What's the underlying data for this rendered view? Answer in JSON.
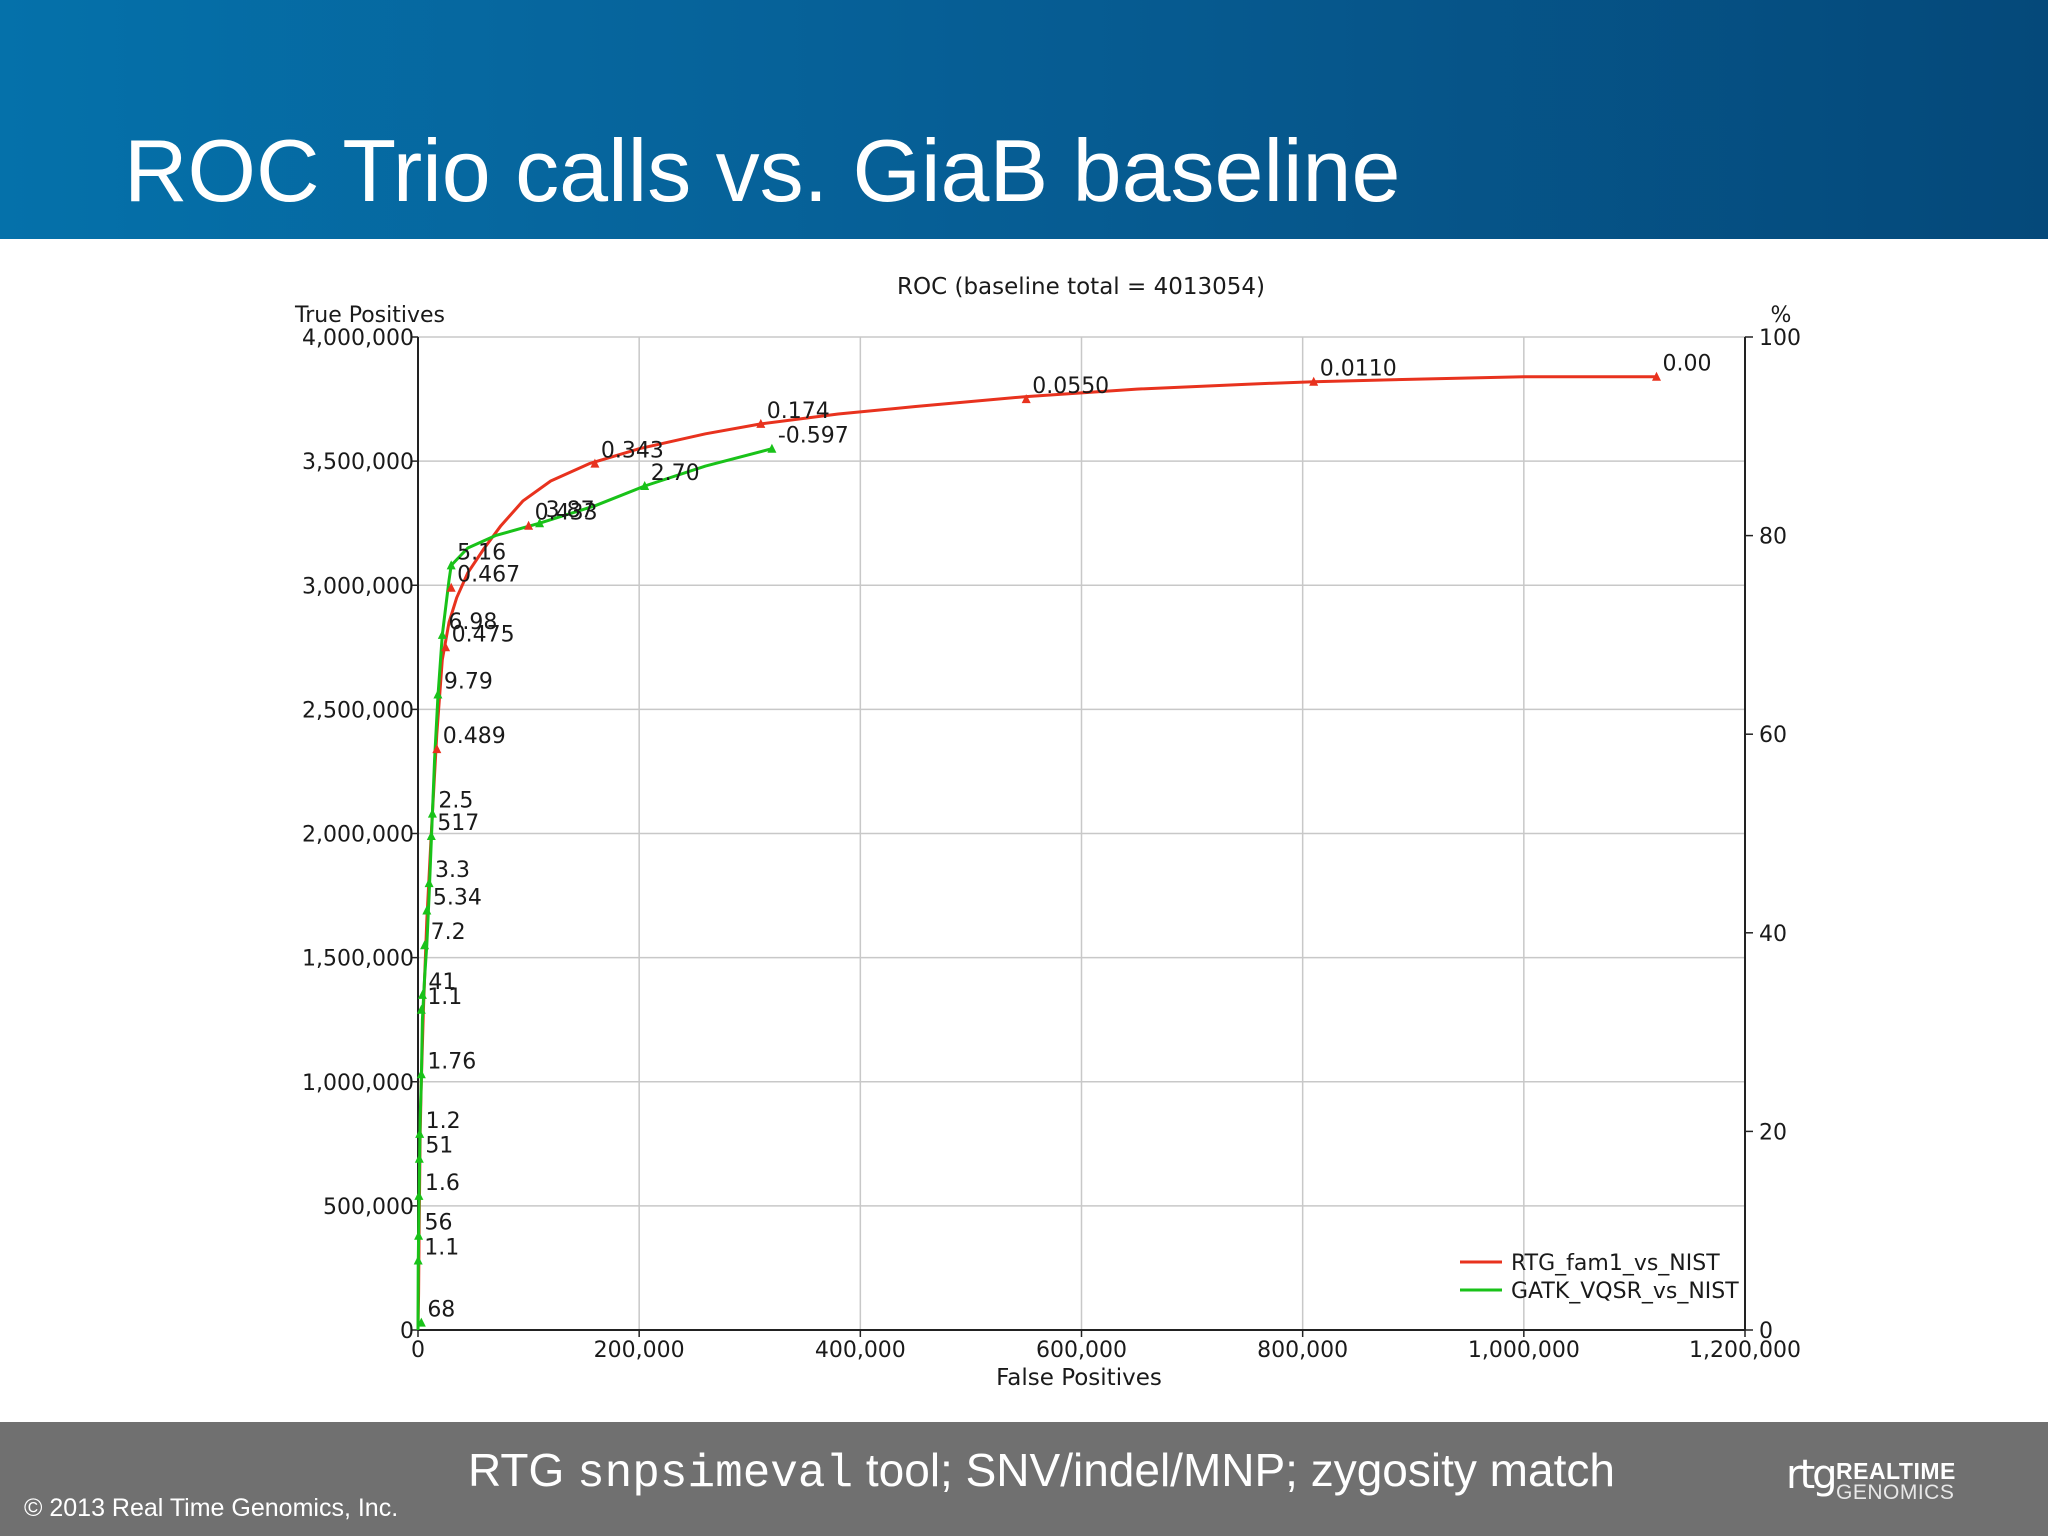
{
  "slide": {
    "title": "ROC Trio calls vs. GiaB baseline",
    "footer_caption_pre": "RTG ",
    "footer_caption_code": "snpsimeval",
    "footer_caption_post": " tool; SNV/indel/MNP; zygosity match",
    "copyright": "© 2013 Real Time Genomics, Inc.",
    "logo_mark": "rtg",
    "logo_line1": "REALTIME",
    "logo_line2": "GENOMICS"
  },
  "colors": {
    "header_start": "#0571aa",
    "header_end": "#05497a",
    "footer": "#707070",
    "rtg_series": "#e8321e",
    "gatk_series": "#19c219",
    "grid": "#c8c8c8"
  },
  "chart_data": {
    "type": "line",
    "title": "ROC (baseline total = 4013054)",
    "xlabel": "False Positives",
    "ylabel": "True Positives",
    "y2label": "%",
    "xlim": [
      0,
      1200000
    ],
    "ylim": [
      0,
      4000000
    ],
    "y2lim": [
      0,
      100
    ],
    "xticks": [
      0,
      200000,
      400000,
      600000,
      800000,
      1000000,
      1200000
    ],
    "xtick_labels": [
      "0",
      "200,000",
      "400,000",
      "600,000",
      "800,000",
      "1,000,000",
      "1,200,000"
    ],
    "yticks": [
      0,
      500000,
      1000000,
      1500000,
      2000000,
      2500000,
      3000000,
      3500000,
      4000000
    ],
    "ytick_labels": [
      "0",
      "500,000",
      "1,000,000",
      "1,500,000",
      "2,000,000",
      "2,500,000",
      "3,000,000",
      "3,500,000",
      "4,000,000"
    ],
    "y2ticks": [
      0,
      20,
      40,
      60,
      80,
      100
    ],
    "y2tick_labels": [
      "0",
      "20",
      "40",
      "60",
      "80",
      "100"
    ],
    "grid": true,
    "legend_position": "bottom-right",
    "series": [
      {
        "name": "RTG_fam1_vs_NIST",
        "color": "#e8321e",
        "points": [
          [
            0,
            0
          ],
          [
            500,
            150000
          ],
          [
            1000,
            400000
          ],
          [
            2000,
            800000
          ],
          [
            3000,
            1000000
          ],
          [
            5000,
            1300000
          ],
          [
            8000,
            1650000
          ],
          [
            12000,
            2000000
          ],
          [
            17000,
            2400000
          ],
          [
            22000,
            2700000
          ],
          [
            28000,
            2850000
          ],
          [
            35000,
            2950000
          ],
          [
            45000,
            3050000
          ],
          [
            60000,
            3150000
          ],
          [
            75000,
            3240000
          ],
          [
            95000,
            3340000
          ],
          [
            120000,
            3420000
          ],
          [
            155000,
            3490000
          ],
          [
            200000,
            3550000
          ],
          [
            260000,
            3610000
          ],
          [
            310000,
            3650000
          ],
          [
            380000,
            3690000
          ],
          [
            450000,
            3720000
          ],
          [
            550000,
            3760000
          ],
          [
            650000,
            3790000
          ],
          [
            750000,
            3810000
          ],
          [
            810000,
            3820000
          ],
          [
            900000,
            3830000
          ],
          [
            1000000,
            3840000
          ],
          [
            1120000,
            3840000
          ]
        ],
        "markers": [
          {
            "x": 100000,
            "y": 3240000,
            "label": "0.433"
          },
          {
            "x": 160000,
            "y": 3490000,
            "label": "0.343"
          },
          {
            "x": 310000,
            "y": 3650000,
            "label": "0.174"
          },
          {
            "x": 550000,
            "y": 3750000,
            "label": "0.0550"
          },
          {
            "x": 810000,
            "y": 3820000,
            "label": "0.0110"
          },
          {
            "x": 1120000,
            "y": 3840000,
            "label": "0.00"
          },
          {
            "x": 30000,
            "y": 2990000,
            "label": "0.467"
          },
          {
            "x": 25000,
            "y": 2750000,
            "label": "0.475"
          },
          {
            "x": 17000,
            "y": 2340000,
            "label": "0.489"
          }
        ]
      },
      {
        "name": "GATK_VQSR_vs_NIST",
        "color": "#19c219",
        "points": [
          [
            0,
            0
          ],
          [
            200,
            250000
          ],
          [
            500,
            380000
          ],
          [
            1000,
            540000
          ],
          [
            1500,
            720000
          ],
          [
            2000,
            860000
          ],
          [
            3000,
            1000000
          ],
          [
            4000,
            1250000
          ],
          [
            6000,
            1420000
          ],
          [
            8000,
            1550000
          ],
          [
            10000,
            1750000
          ],
          [
            13000,
            2080000
          ],
          [
            15000,
            2300000
          ],
          [
            18000,
            2550000
          ],
          [
            22000,
            2800000
          ],
          [
            28000,
            3020000
          ],
          [
            30000,
            3080000
          ],
          [
            45000,
            3150000
          ],
          [
            70000,
            3200000
          ],
          [
            110000,
            3250000
          ],
          [
            160000,
            3320000
          ],
          [
            205000,
            3400000
          ],
          [
            260000,
            3480000
          ],
          [
            320000,
            3550000
          ]
        ],
        "markers": [
          {
            "x": 320000,
            "y": 3550000,
            "label": "-0.597"
          },
          {
            "x": 205000,
            "y": 3400000,
            "label": "2.70"
          },
          {
            "x": 110000,
            "y": 3250000,
            "label": "3.87"
          },
          {
            "x": 30000,
            "y": 3080000,
            "label": "5.16"
          },
          {
            "x": 22000,
            "y": 2800000,
            "label": "6.98"
          },
          {
            "x": 18000,
            "y": 2560000,
            "label": "9.79"
          },
          {
            "x": 13000,
            "y": 2080000,
            "label": "2.5"
          },
          {
            "x": 12000,
            "y": 1990000,
            "label": "517"
          },
          {
            "x": 10000,
            "y": 1800000,
            "label": "3.3"
          },
          {
            "x": 8000,
            "y": 1690000,
            "label": "5.34"
          },
          {
            "x": 6000,
            "y": 1550000,
            "label": "7.2"
          },
          {
            "x": 4000,
            "y": 1350000,
            "label": "41"
          },
          {
            "x": 3000,
            "y": 1290000,
            "label": "1.1"
          },
          {
            "x": 3000,
            "y": 1030000,
            "label": "1.76"
          },
          {
            "x": 1500,
            "y": 790000,
            "label": "1.2"
          },
          {
            "x": 1200,
            "y": 690000,
            "label": "51"
          },
          {
            "x": 800,
            "y": 540000,
            "label": "1.6"
          },
          {
            "x": 500,
            "y": 380000,
            "label": "56"
          },
          {
            "x": 200,
            "y": 280000,
            "label": "1.1"
          },
          {
            "x": 3000,
            "y": 30000,
            "label": "68"
          }
        ]
      }
    ]
  }
}
